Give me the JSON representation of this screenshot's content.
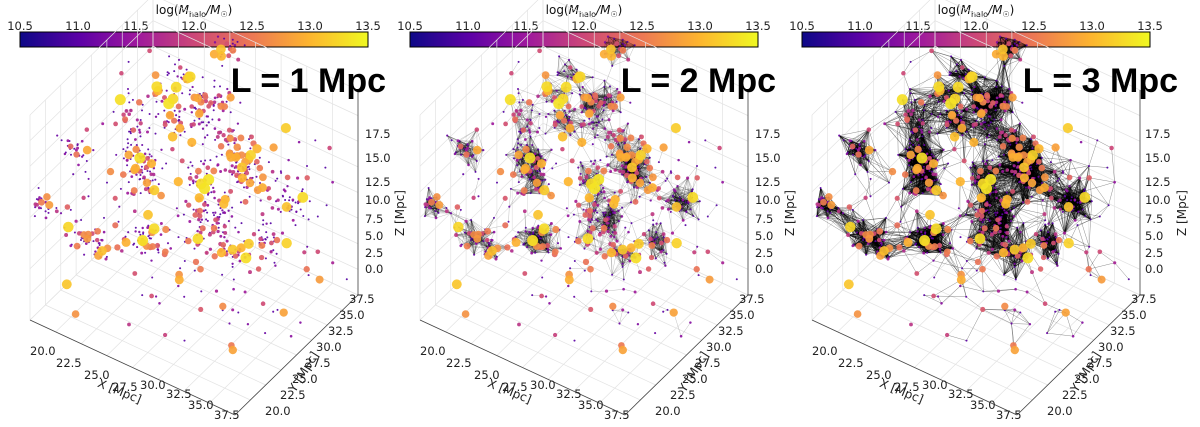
{
  "colorbar": {
    "label_prefix": "log(",
    "label_M": "M",
    "label_sub": "halo",
    "label_mid": "/M",
    "label_sun": "☉",
    "label_suffix": ")",
    "ticks": [
      "10.5",
      "11.0",
      "11.5",
      "12.0",
      "12.5",
      "13.0",
      "13.5"
    ],
    "range": [
      10.5,
      13.5
    ],
    "colormap": "plasma",
    "colors": [
      "#0d0887",
      "#5c01a6",
      "#9c179e",
      "#cc4778",
      "#ed7953",
      "#fdb42f",
      "#f0f921"
    ]
  },
  "axes": {
    "x_label": "X [Mpc]",
    "y_label": "Y [Mpc]",
    "z_label": "Z [Mpc]",
    "x_ticks": [
      "20.0",
      "22.5",
      "25.0",
      "27.5",
      "30.0",
      "32.5",
      "35.0",
      "37.5"
    ],
    "y_ticks": [
      "20.0",
      "22.5",
      "25.0",
      "27.5",
      "30.0",
      "32.5",
      "35.0",
      "37.5"
    ],
    "z_ticks": [
      "0.0",
      "2.5",
      "5.0",
      "7.5",
      "10.0",
      "12.5",
      "15.0",
      "17.5"
    ]
  },
  "chart_data": [
    {
      "type": "scatter",
      "projection": "3d",
      "title": "L = 1 Mpc",
      "xlabel": "X [Mpc]",
      "ylabel": "Y [Mpc]",
      "zlabel": "Z [Mpc]",
      "xlim": [
        18.5,
        38.5
      ],
      "ylim": [
        18.5,
        38.5
      ],
      "zlim": [
        -1,
        19
      ],
      "color_variable": "log(M_halo/M_sun)",
      "clim": [
        10.5,
        13.5
      ],
      "link_length_mpc": 1,
      "link_density": "sparse",
      "grid": true
    },
    {
      "type": "scatter",
      "projection": "3d",
      "title": "L = 2 Mpc",
      "xlabel": "X [Mpc]",
      "ylabel": "Y [Mpc]",
      "zlabel": "Z [Mpc]",
      "xlim": [
        18.5,
        38.5
      ],
      "ylim": [
        18.5,
        38.5
      ],
      "zlim": [
        -1,
        19
      ],
      "color_variable": "log(M_halo/M_sun)",
      "clim": [
        10.5,
        13.5
      ],
      "link_length_mpc": 2,
      "link_density": "moderate",
      "grid": true
    },
    {
      "type": "scatter",
      "projection": "3d",
      "title": "L = 3 Mpc",
      "xlabel": "X [Mpc]",
      "ylabel": "Y [Mpc]",
      "zlabel": "Z [Mpc]",
      "xlim": [
        18.5,
        38.5
      ],
      "ylim": [
        18.5,
        38.5
      ],
      "zlim": [
        -1,
        19
      ],
      "color_variable": "log(M_halo/M_sun)",
      "clim": [
        10.5,
        13.5
      ],
      "link_length_mpc": 3,
      "link_density": "dense",
      "grid": true
    }
  ]
}
